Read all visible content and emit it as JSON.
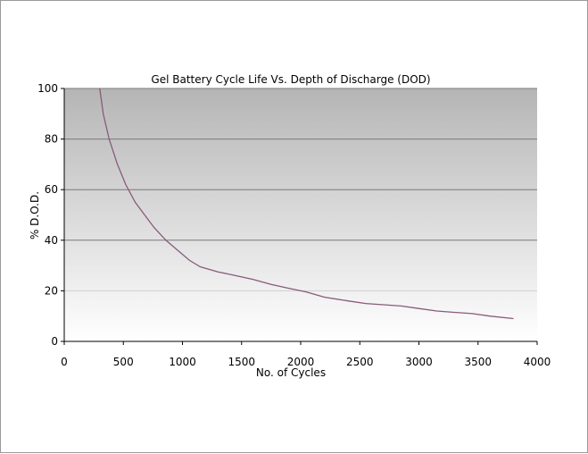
{
  "chart_data": {
    "type": "line",
    "title": "Gel Battery Cycle Life Vs. Depth of Discharge (DOD)",
    "xlabel": "No. of Cycles",
    "ylabel": "% D.O.D.",
    "xlim": [
      0,
      4000
    ],
    "ylim": [
      0,
      100
    ],
    "xticks": [
      0,
      500,
      1000,
      1500,
      2000,
      2500,
      3000,
      3500,
      4000
    ],
    "yticks": [
      0,
      20,
      40,
      60,
      80,
      100
    ],
    "grid": "horizontal",
    "background": "vertical gradient, dark gray at top to white at bottom",
    "series": [
      {
        "color": "#8a5a7a",
        "points": [
          [
            300,
            100
          ],
          [
            330,
            90
          ],
          [
            380,
            80
          ],
          [
            450,
            70
          ],
          [
            520,
            62
          ],
          [
            600,
            55
          ],
          [
            680,
            50
          ],
          [
            760,
            45
          ],
          [
            860,
            40
          ],
          [
            960,
            36
          ],
          [
            1060,
            32
          ],
          [
            1150,
            29.5
          ],
          [
            1300,
            27.5
          ],
          [
            1450,
            26
          ],
          [
            1600,
            24.5
          ],
          [
            1750,
            22.5
          ],
          [
            1900,
            21
          ],
          [
            2050,
            19.5
          ],
          [
            2200,
            17.5
          ],
          [
            2400,
            16
          ],
          [
            2550,
            15
          ],
          [
            2700,
            14.5
          ],
          [
            2850,
            14
          ],
          [
            3000,
            13
          ],
          [
            3150,
            12
          ],
          [
            3300,
            11.5
          ],
          [
            3450,
            11
          ],
          [
            3600,
            10
          ],
          [
            3800,
            9
          ]
        ]
      }
    ]
  },
  "colors": {
    "frame_border": "#9a9a9a",
    "plot_top": "#b5b5b5",
    "plot_bottom": "#ffffff",
    "gridline": "#7a7a7a",
    "axis": "#000000",
    "line": "#8a5a7a"
  }
}
